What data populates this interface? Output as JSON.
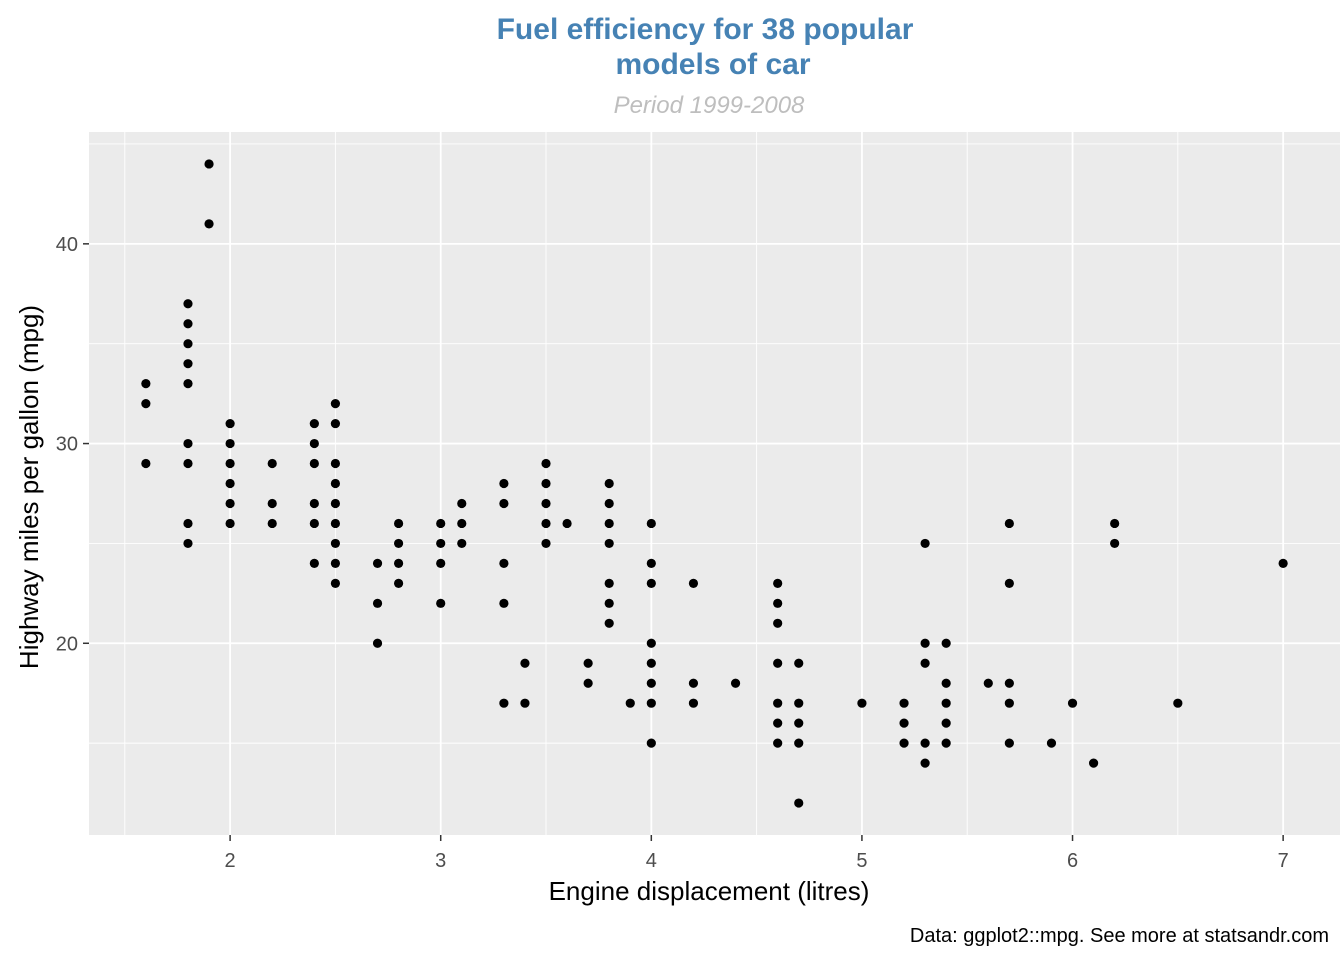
{
  "colors": {
    "title": "#4682b4",
    "subtitle": "#bebebe",
    "panel": "#ebebeb",
    "grid": "#ffffff",
    "point": "#000000",
    "tick": "#333333"
  },
  "chart_data": {
    "type": "scatter",
    "title_line1": "Fuel efficiency for 38 popular",
    "title_line2": "models of car",
    "subtitle": "Period 1999-2008",
    "xlabel": "Engine displacement (litres)",
    "ylabel": "Highway miles per gallon (mpg)",
    "caption": "Data: ggplot2::mpg. See more at statsandr.com",
    "xlim": [
      1.33,
      7.27
    ],
    "ylim": [
      10.4,
      45.6
    ],
    "x_ticks": [
      2,
      3,
      4,
      5,
      6,
      7
    ],
    "x_tick_labels": [
      "2",
      "3",
      "4",
      "5",
      "6",
      "7"
    ],
    "y_ticks": [
      20,
      30,
      40
    ],
    "y_tick_labels": [
      "20",
      "30",
      "40"
    ],
    "grid": true,
    "points": [
      [
        1.6,
        33
      ],
      [
        1.6,
        32
      ],
      [
        1.6,
        29
      ],
      [
        1.8,
        37
      ],
      [
        1.8,
        36
      ],
      [
        1.8,
        35
      ],
      [
        1.8,
        34
      ],
      [
        1.8,
        33
      ],
      [
        1.8,
        30
      ],
      [
        1.8,
        29
      ],
      [
        1.8,
        26
      ],
      [
        1.8,
        25
      ],
      [
        1.9,
        44
      ],
      [
        1.9,
        41
      ],
      [
        2.0,
        31
      ],
      [
        2.0,
        30
      ],
      [
        2.0,
        29
      ],
      [
        2.0,
        28
      ],
      [
        2.0,
        27
      ],
      [
        2.0,
        26
      ],
      [
        2.2,
        29
      ],
      [
        2.2,
        27
      ],
      [
        2.2,
        26
      ],
      [
        2.4,
        31
      ],
      [
        2.4,
        30
      ],
      [
        2.4,
        29
      ],
      [
        2.4,
        27
      ],
      [
        2.4,
        26
      ],
      [
        2.4,
        24
      ],
      [
        2.5,
        32
      ],
      [
        2.5,
        31
      ],
      [
        2.5,
        29
      ],
      [
        2.5,
        28
      ],
      [
        2.5,
        27
      ],
      [
        2.5,
        26
      ],
      [
        2.5,
        25
      ],
      [
        2.5,
        24
      ],
      [
        2.5,
        23
      ],
      [
        2.7,
        24
      ],
      [
        2.7,
        22
      ],
      [
        2.7,
        20
      ],
      [
        2.8,
        26
      ],
      [
        2.8,
        25
      ],
      [
        2.8,
        24
      ],
      [
        2.8,
        23
      ],
      [
        3.0,
        26
      ],
      [
        3.0,
        25
      ],
      [
        3.0,
        24
      ],
      [
        3.0,
        22
      ],
      [
        3.1,
        27
      ],
      [
        3.1,
        26
      ],
      [
        3.1,
        25
      ],
      [
        3.3,
        28
      ],
      [
        3.3,
        27
      ],
      [
        3.3,
        24
      ],
      [
        3.3,
        22
      ],
      [
        3.3,
        17
      ],
      [
        3.4,
        19
      ],
      [
        3.4,
        17
      ],
      [
        3.5,
        29
      ],
      [
        3.5,
        28
      ],
      [
        3.5,
        27
      ],
      [
        3.5,
        26
      ],
      [
        3.5,
        25
      ],
      [
        3.6,
        26
      ],
      [
        3.7,
        19
      ],
      [
        3.7,
        18
      ],
      [
        3.8,
        28
      ],
      [
        3.8,
        27
      ],
      [
        3.8,
        26
      ],
      [
        3.8,
        25
      ],
      [
        3.8,
        23
      ],
      [
        3.8,
        22
      ],
      [
        3.8,
        21
      ],
      [
        3.9,
        17
      ],
      [
        4.0,
        26
      ],
      [
        4.0,
        24
      ],
      [
        4.0,
        23
      ],
      [
        4.0,
        20
      ],
      [
        4.0,
        19
      ],
      [
        4.0,
        18
      ],
      [
        4.0,
        17
      ],
      [
        4.0,
        15
      ],
      [
        4.2,
        23
      ],
      [
        4.2,
        18
      ],
      [
        4.2,
        17
      ],
      [
        4.4,
        18
      ],
      [
        4.6,
        23
      ],
      [
        4.6,
        22
      ],
      [
        4.6,
        21
      ],
      [
        4.6,
        19
      ],
      [
        4.6,
        17
      ],
      [
        4.6,
        16
      ],
      [
        4.6,
        15
      ],
      [
        4.7,
        19
      ],
      [
        4.7,
        17
      ],
      [
        4.7,
        16
      ],
      [
        4.7,
        15
      ],
      [
        4.7,
        12
      ],
      [
        5.0,
        17
      ],
      [
        5.2,
        17
      ],
      [
        5.2,
        16
      ],
      [
        5.2,
        15
      ],
      [
        5.3,
        25
      ],
      [
        5.3,
        20
      ],
      [
        5.3,
        19
      ],
      [
        5.3,
        15
      ],
      [
        5.3,
        14
      ],
      [
        5.4,
        20
      ],
      [
        5.4,
        18
      ],
      [
        5.4,
        17
      ],
      [
        5.4,
        16
      ],
      [
        5.4,
        15
      ],
      [
        5.6,
        18
      ],
      [
        5.7,
        26
      ],
      [
        5.7,
        23
      ],
      [
        5.7,
        18
      ],
      [
        5.7,
        17
      ],
      [
        5.7,
        15
      ],
      [
        5.9,
        15
      ],
      [
        6.0,
        17
      ],
      [
        6.1,
        14
      ],
      [
        6.2,
        26
      ],
      [
        6.2,
        25
      ],
      [
        6.5,
        17
      ],
      [
        7.0,
        24
      ]
    ]
  }
}
